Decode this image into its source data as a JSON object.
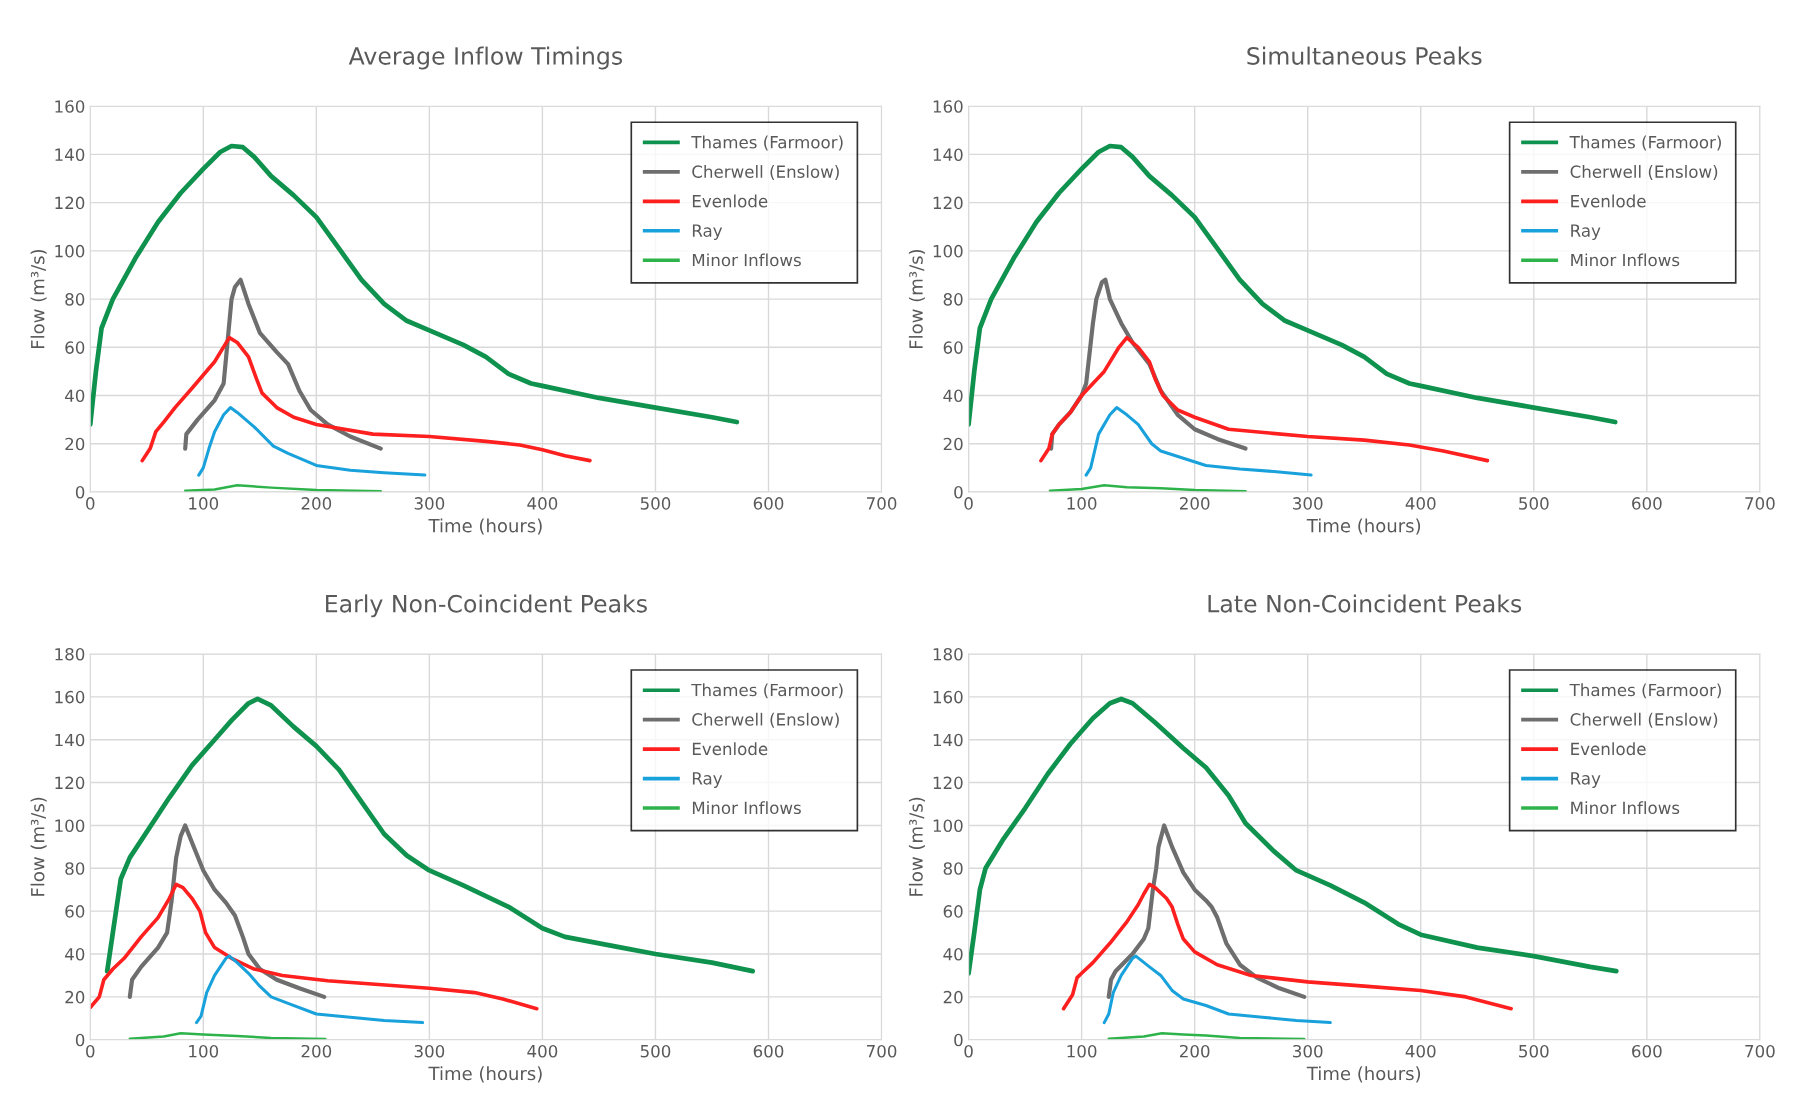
{
  "chart_data": [
    {
      "type": "line",
      "title": "Average Inflow Timings",
      "xlabel": "Time (hours)",
      "ylabel": "Flow (m³/s)",
      "xlim": [
        0,
        700
      ],
      "xticks": [
        0,
        100,
        200,
        300,
        400,
        500,
        600,
        700
      ],
      "ylim": [
        0,
        160
      ],
      "yticks": [
        0,
        20,
        40,
        60,
        80,
        100,
        120,
        140,
        160
      ],
      "grid": true,
      "legend": "top right",
      "marker": "none",
      "line_style": "solid",
      "series": [
        {
          "name": "Thames (Farmoor)",
          "color": "#10924f",
          "x": [
            0,
            5,
            10,
            20,
            40,
            60,
            80,
            100,
            115,
            125,
            135,
            145,
            160,
            180,
            200,
            220,
            240,
            260,
            280,
            300,
            330,
            350,
            370,
            390,
            400,
            450,
            500,
            550,
            572
          ],
          "values": [
            28,
            50,
            68,
            80,
            97,
            112,
            124,
            134,
            141,
            143.5,
            143,
            139,
            131,
            123,
            114,
            101,
            88,
            78,
            71,
            67,
            61,
            56,
            49,
            45,
            44,
            39,
            35,
            31,
            29
          ]
        },
        {
          "name": "Cherwell (Enslow)",
          "color": "#6e6e6e",
          "x": [
            84,
            85,
            95,
            110,
            118,
            122,
            125,
            128,
            133,
            140,
            150,
            165,
            175,
            185,
            195,
            210,
            230,
            257
          ],
          "values": [
            18,
            24,
            30,
            38,
            45,
            65,
            80,
            85,
            88,
            78,
            66,
            58,
            53,
            42,
            34,
            28,
            23,
            18
          ]
        },
        {
          "name": "Evenlode",
          "color": "#fe1f1f",
          "x": [
            46,
            53,
            58,
            65,
            75,
            90,
            110,
            123,
            130,
            140,
            147,
            152,
            165,
            180,
            200,
            250,
            300,
            350,
            380,
            400,
            420,
            442
          ],
          "values": [
            13,
            18,
            25,
            29,
            35,
            43,
            54,
            64,
            62,
            56,
            47,
            41,
            35,
            31,
            28,
            24,
            23,
            21,
            19.5,
            17.5,
            15,
            13
          ]
        },
        {
          "name": "Ray",
          "color": "#19a1dc",
          "x": [
            96,
            100,
            105,
            110,
            118,
            124,
            130,
            145,
            162,
            175,
            200,
            230,
            260,
            296
          ],
          "values": [
            7,
            10,
            18,
            25,
            32,
            35,
            33,
            27,
            19,
            16,
            11,
            9,
            8,
            7
          ]
        },
        {
          "name": "Minor Inflows",
          "color": "#2eb34b",
          "x": [
            84,
            110,
            130,
            160,
            200,
            257
          ],
          "values": [
            0.5,
            1,
            2.8,
            1.8,
            0.8,
            0.3
          ]
        }
      ]
    },
    {
      "type": "line",
      "title": "Simultaneous Peaks",
      "xlabel": "Time (hours)",
      "ylabel": "Flow (m³/s)",
      "xlim": [
        0,
        700
      ],
      "xticks": [
        0,
        100,
        200,
        300,
        400,
        500,
        600,
        700
      ],
      "ylim": [
        0,
        160
      ],
      "yticks": [
        0,
        20,
        40,
        60,
        80,
        100,
        120,
        140,
        160
      ],
      "grid": true,
      "legend": "top right",
      "marker": "none",
      "line_style": "solid",
      "series": [
        {
          "name": "Thames (Farmoor)",
          "color": "#10924f",
          "x": [
            0,
            5,
            10,
            20,
            40,
            60,
            80,
            100,
            115,
            125,
            135,
            145,
            160,
            180,
            200,
            220,
            240,
            260,
            280,
            300,
            330,
            350,
            370,
            390,
            400,
            450,
            500,
            550,
            572
          ],
          "values": [
            28,
            50,
            68,
            80,
            97,
            112,
            124,
            134,
            141,
            143.5,
            143,
            139,
            131,
            123,
            114,
            101,
            88,
            78,
            71,
            67,
            61,
            56,
            49,
            45,
            44,
            39,
            35,
            31,
            29
          ]
        },
        {
          "name": "Cherwell (Enslow)",
          "color": "#6e6e6e",
          "x": [
            73,
            74,
            80,
            90,
            100,
            104,
            110,
            113,
            118,
            121,
            125,
            135,
            145,
            160,
            170,
            185,
            200,
            220,
            245
          ],
          "values": [
            18,
            24,
            28,
            33,
            40,
            45,
            70,
            80,
            87,
            88,
            80,
            70,
            62,
            53,
            42,
            32,
            26,
            22,
            18
          ]
        },
        {
          "name": "Evenlode",
          "color": "#fe1f1f",
          "x": [
            64,
            71,
            74,
            80,
            90,
            100,
            120,
            133,
            140,
            150,
            160,
            165,
            172,
            185,
            200,
            230,
            300,
            350,
            390,
            420,
            459
          ],
          "values": [
            13,
            18,
            24,
            28,
            33,
            40,
            50,
            60,
            64,
            60,
            54,
            47,
            40,
            34,
            31,
            26,
            23,
            21.5,
            19.5,
            17,
            13
          ]
        },
        {
          "name": "Ray",
          "color": "#19a1dc",
          "x": [
            104,
            108,
            112,
            115,
            125,
            131,
            140,
            150,
            162,
            170,
            190,
            210,
            240,
            270,
            303
          ],
          "values": [
            7,
            10,
            18,
            24,
            32,
            35,
            32,
            28,
            20,
            17,
            14,
            11,
            9.5,
            8.5,
            7
          ]
        },
        {
          "name": "Minor Inflows",
          "color": "#2eb34b",
          "x": [
            72,
            100,
            120,
            140,
            170,
            200,
            245
          ],
          "values": [
            0.5,
            1.2,
            2.8,
            2,
            1.5,
            0.8,
            0.3
          ]
        }
      ]
    },
    {
      "type": "line",
      "title": "Early Non-Coincident Peaks",
      "xlabel": "Time (hours)",
      "ylabel": "Flow (m³/s)",
      "xlim": [
        0,
        700
      ],
      "xticks": [
        0,
        100,
        200,
        300,
        400,
        500,
        600,
        700
      ],
      "ylim": [
        0,
        180
      ],
      "yticks": [
        0,
        20,
        40,
        60,
        80,
        100,
        120,
        140,
        160,
        180
      ],
      "grid": true,
      "legend": "top right",
      "marker": "none",
      "line_style": "solid",
      "series": [
        {
          "name": "Thames (Farmoor)",
          "color": "#10924f",
          "x": [
            15,
            20,
            27,
            35,
            50,
            70,
            90,
            110,
            125,
            140,
            148,
            160,
            180,
            200,
            220,
            240,
            260,
            280,
            300,
            330,
            370,
            400,
            420,
            470,
            500,
            550,
            586
          ],
          "values": [
            32,
            50,
            75,
            85,
            97,
            113,
            128,
            140,
            149,
            157,
            159,
            156,
            146,
            137,
            126,
            111,
            96,
            86,
            79,
            72,
            62,
            52,
            48,
            43,
            40,
            36,
            32
          ]
        },
        {
          "name": "Cherwell (Enslow)",
          "color": "#6e6e6e",
          "x": [
            35,
            37,
            45,
            60,
            68,
            72,
            76,
            80,
            84,
            90,
            100,
            110,
            120,
            128,
            135,
            140,
            150,
            165,
            185,
            207
          ],
          "values": [
            20,
            28,
            34,
            43,
            50,
            65,
            85,
            95,
            100,
            92,
            79,
            70,
            64,
            58,
            48,
            40,
            33,
            28,
            24,
            20
          ]
        },
        {
          "name": "Evenlode",
          "color": "#fe1f1f",
          "x": [
            0,
            8,
            12,
            20,
            30,
            45,
            60,
            70,
            76,
            82,
            90,
            97,
            102,
            110,
            125,
            145,
            170,
            210,
            300,
            340,
            365,
            395
          ],
          "values": [
            15,
            20,
            28,
            33,
            38,
            48,
            57,
            66,
            72.5,
            71,
            66,
            60,
            50,
            43,
            38,
            33,
            30,
            27.5,
            24,
            22,
            19,
            14.5
          ]
        },
        {
          "name": "Ray",
          "color": "#19a1dc",
          "x": [
            94,
            98,
            103,
            110,
            120,
            123,
            130,
            140,
            150,
            160,
            175,
            200,
            230,
            260,
            294
          ],
          "values": [
            8,
            11,
            22,
            30,
            38,
            39,
            36,
            31,
            25,
            20,
            17,
            12,
            10.5,
            9,
            8
          ]
        },
        {
          "name": "Minor Inflows",
          "color": "#2eb34b",
          "x": [
            35,
            65,
            80,
            100,
            130,
            160,
            208
          ],
          "values": [
            0.5,
            1.5,
            3,
            2.5,
            1.8,
            0.8,
            0.3
          ]
        }
      ]
    },
    {
      "type": "line",
      "title": "Late Non-Coincident Peaks",
      "xlabel": "Time (hours)",
      "ylabel": "Flow (m³/s)",
      "xlim": [
        0,
        700
      ],
      "xticks": [
        0,
        100,
        200,
        300,
        400,
        500,
        600,
        700
      ],
      "ylim": [
        0,
        180
      ],
      "yticks": [
        0,
        20,
        40,
        60,
        80,
        100,
        120,
        140,
        160,
        180
      ],
      "grid": true,
      "legend": "top right",
      "marker": "none",
      "line_style": "solid",
      "series": [
        {
          "name": "Thames (Farmoor)",
          "color": "#10924f",
          "x": [
            0,
            5,
            10,
            15,
            30,
            50,
            70,
            90,
            110,
            125,
            135,
            145,
            165,
            190,
            210,
            230,
            245,
            270,
            290,
            320,
            350,
            380,
            400,
            450,
            500,
            550,
            573
          ],
          "values": [
            31,
            50,
            70,
            80,
            93,
            108,
            124,
            138,
            150,
            157,
            159,
            157,
            148,
            136,
            127,
            114,
            101,
            88,
            79,
            72,
            64,
            54,
            49,
            43,
            39,
            34,
            32
          ]
        },
        {
          "name": "Cherwell (Enslow)",
          "color": "#6e6e6e",
          "x": [
            124,
            126,
            130,
            145,
            155,
            159,
            163,
            166,
            168,
            173,
            180,
            190,
            200,
            210,
            215,
            220,
            228,
            240,
            255,
            275,
            297
          ],
          "values": [
            20,
            28,
            32,
            40,
            47,
            52,
            70,
            80,
            90,
            100,
            90,
            78,
            70,
            65,
            62,
            57,
            45,
            35,
            29,
            24,
            20
          ]
        },
        {
          "name": "Evenlode",
          "color": "#fe1f1f",
          "x": [
            84,
            92,
            96,
            100,
            110,
            125,
            140,
            150,
            155,
            160,
            165,
            175,
            180,
            185,
            190,
            200,
            220,
            250,
            300,
            350,
            400,
            440,
            480
          ],
          "values": [
            14.5,
            21,
            29,
            31,
            36,
            45,
            55,
            63,
            68,
            72.5,
            71,
            66,
            62,
            54,
            47,
            41,
            35,
            30,
            27,
            25,
            23,
            20,
            14.5
          ]
        },
        {
          "name": "Ray",
          "color": "#19a1dc",
          "x": [
            120,
            124,
            128,
            135,
            145,
            148,
            160,
            170,
            180,
            190,
            210,
            230,
            260,
            290,
            320
          ],
          "values": [
            8,
            12,
            22,
            30,
            38,
            39,
            34,
            30,
            23,
            19,
            16,
            12,
            10.5,
            9,
            8
          ]
        },
        {
          "name": "Minor Inflows",
          "color": "#2eb34b",
          "x": [
            124,
            155,
            171,
            190,
            210,
            240,
            297
          ],
          "values": [
            0.5,
            1.5,
            3,
            2.5,
            2,
            0.8,
            0.3
          ]
        }
      ]
    }
  ]
}
